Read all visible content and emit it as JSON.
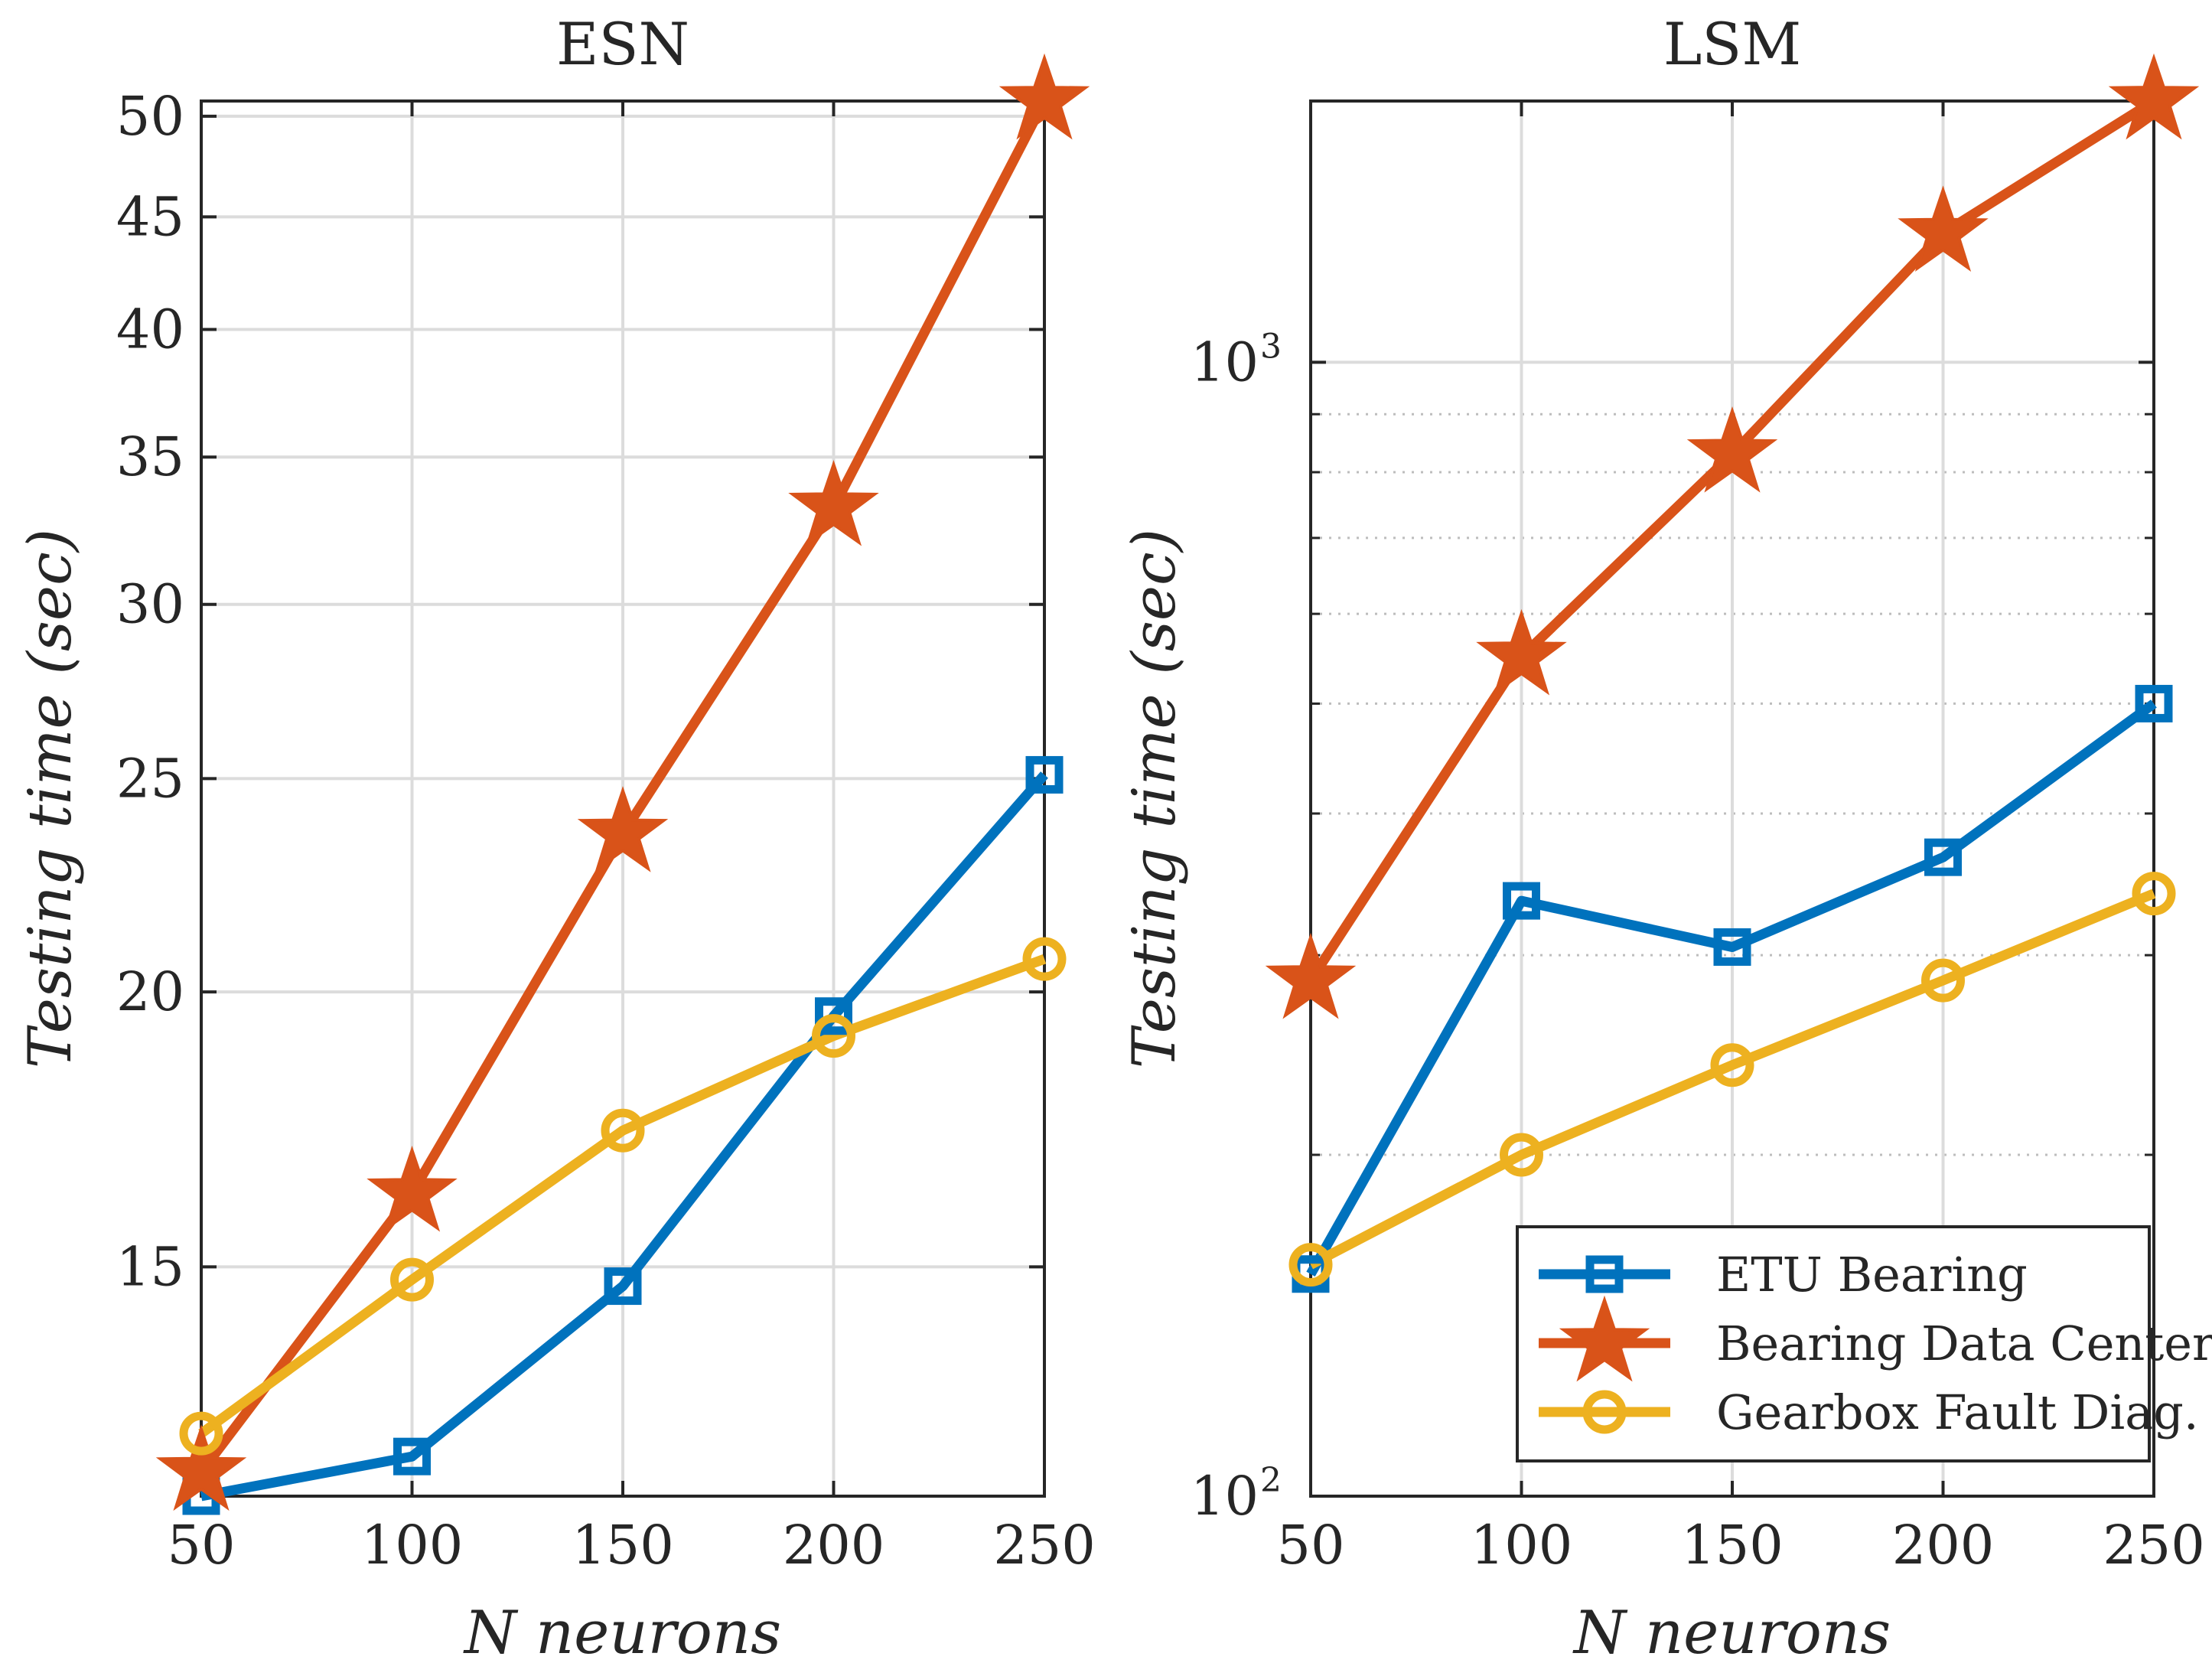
{
  "chart_data": [
    {
      "type": "line",
      "title": "ESN",
      "xlabel": "N neurons",
      "ylabel": "Testing time (sec)",
      "yscale": "log",
      "xlim": [
        50,
        250
      ],
      "ylim": [
        11.8,
        50.8
      ],
      "x": [
        50,
        100,
        150,
        200,
        250
      ],
      "x_tick_labels": [
        "50",
        "100",
        "150",
        "200",
        "250"
      ],
      "y_ticks": [
        15,
        20,
        25,
        30,
        35,
        40,
        45,
        50
      ],
      "y_tick_labels": [
        "15",
        "20",
        "25",
        "30",
        "35",
        "40",
        "45",
        "50"
      ],
      "grid": true,
      "series": [
        {
          "name": "ETU Bearing",
          "marker": "square",
          "color": "#0072BD",
          "values": [
            11.8,
            12.3,
            14.7,
            19.5,
            25.1
          ]
        },
        {
          "name": "Bearing Data Center",
          "marker": "star",
          "color": "#D95319",
          "values": [
            12.1,
            16.2,
            23.6,
            33.2,
            50.8
          ]
        },
        {
          "name": "Gearbox Fault Diag.",
          "marker": "circle",
          "color": "#EDB120",
          "values": [
            12.6,
            14.8,
            17.3,
            19.1,
            20.7
          ]
        }
      ]
    },
    {
      "type": "line",
      "title": "LSM",
      "xlabel": "N neurons",
      "ylabel": "Testing time (sec)",
      "yscale": "log",
      "xlim": [
        50,
        250
      ],
      "ylim": [
        100,
        1700
      ],
      "x": [
        50,
        100,
        150,
        200,
        250
      ],
      "x_tick_labels": [
        "50",
        "100",
        "150",
        "200",
        "250"
      ],
      "y_ticks": [
        100,
        1000
      ],
      "y_tick_labels": [
        {
          "base": "10",
          "exp": "2"
        },
        {
          "base": "10",
          "exp": "3"
        }
      ],
      "grid": true,
      "legend": {
        "position": "bottom-right",
        "entries": [
          "ETU Bearing",
          "Bearing Data Center",
          "Gearbox Fault Diag."
        ]
      },
      "series": [
        {
          "name": "ETU Bearing",
          "marker": "square",
          "color": "#0072BD",
          "values": [
            157,
            335,
            305,
            366,
            500
          ]
        },
        {
          "name": "Bearing Data Center",
          "marker": "star",
          "color": "#D95319",
          "values": [
            285,
            550,
            830,
            1300,
            1700
          ]
        },
        {
          "name": "Gearbox Fault Diag.",
          "marker": "circle",
          "color": "#EDB120",
          "values": [
            160,
            200,
            240,
            285,
            340
          ]
        }
      ]
    }
  ]
}
